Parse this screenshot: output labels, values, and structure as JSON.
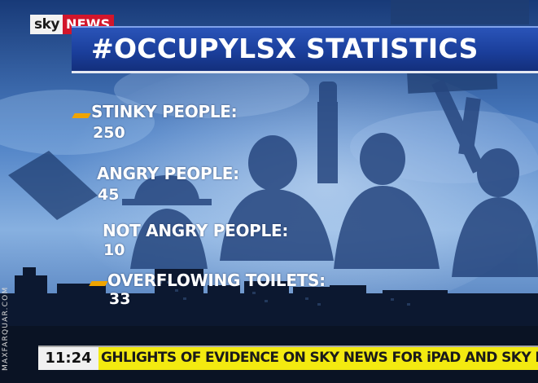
{
  "logo": {
    "sky": "sky",
    "news": "NEWS"
  },
  "title": "#OCCUPYLSX STATISTICS",
  "stats": [
    {
      "label": "STINKY PEOPLE:",
      "value": "250",
      "marker": true
    },
    {
      "label": "ANGRY PEOPLE:",
      "value": "45",
      "marker": false
    },
    {
      "label": "NOT ANGRY PEOPLE:",
      "value": "10",
      "marker": false
    },
    {
      "label": "OVERFLOWING TOILETS:",
      "value": "33",
      "marker": true
    }
  ],
  "ticker": {
    "time": "11:24",
    "text": "GHLIGHTS OF EVIDENCE ON SKY NEWS FOR iPAD AND SKY INTERACT"
  },
  "watermark": "MAXFARQUAR.COM",
  "colors": {
    "banner_blue": "#1b3f9c",
    "sky_news_red": "#d2162b",
    "ticker_yellow": "#f3ea10",
    "marker_orange": "#f0a400"
  }
}
